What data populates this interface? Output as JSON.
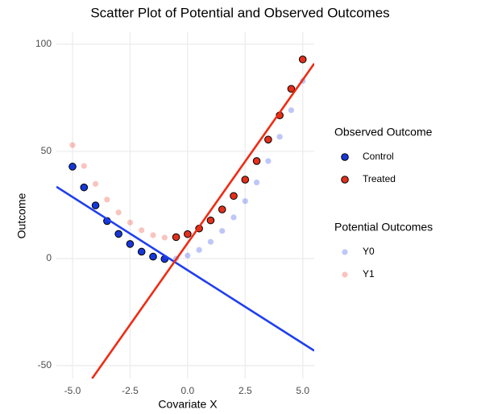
{
  "chart_data": {
    "type": "scatter",
    "title": "Scatter Plot of Potential and Observed Outcomes",
    "x_label": "Covariate X",
    "y_label": "Outcome",
    "xlim": [
      -5.7,
      5.5
    ],
    "ylim": [
      -56,
      105.6
    ],
    "xticks": [
      {
        "value": -5,
        "label": "-5.0"
      },
      -2.5,
      {
        "value": 0,
        "label": "0.0"
      },
      2.5,
      {
        "value": 5,
        "label": "5.0"
      }
    ],
    "yticks": [
      -50,
      0,
      50,
      100
    ],
    "grid": true,
    "legend_groups": [
      {
        "title": "Observed Outcome"
      },
      {
        "title": "Potential Outcomes"
      }
    ],
    "series": [
      {
        "name": "Y0",
        "color": "#2746e8",
        "group": 1,
        "opacity": 0.3,
        "x": [
          -5,
          -4.5,
          -4,
          -3.5,
          -3,
          -2.5,
          -2,
          -1.5,
          -1,
          -0.5,
          0,
          0.5,
          1,
          1.5,
          2,
          2.5,
          3,
          3.5,
          4,
          4.5,
          5
        ],
        "values": [
          42.9,
          33.2,
          24.8,
          17.5,
          11.5,
          6.8,
          3.2,
          0.9,
          -0.2,
          0.0,
          1.4,
          4.0,
          7.8,
          12.9,
          19.2,
          26.8,
          35.5,
          45.5,
          56.8,
          69.2,
          82.9
        ]
      },
      {
        "name": "Y1",
        "color": "#ea3a2a",
        "group": 1,
        "opacity": 0.3,
        "x": [
          -5,
          -4.5,
          -4,
          -3.5,
          -3,
          -2.5,
          -2,
          -1.5,
          -1,
          -0.5,
          0,
          0.5,
          1,
          1.5,
          2,
          2.5,
          3,
          3.5,
          4,
          4.5,
          5
        ],
        "values": [
          52.9,
          43.2,
          34.8,
          27.5,
          21.5,
          16.8,
          13.2,
          10.9,
          9.8,
          10.0,
          11.4,
          14.0,
          17.8,
          22.9,
          29.2,
          36.8,
          45.5,
          55.5,
          66.8,
          79.2,
          92.9
        ]
      },
      {
        "name": "Control",
        "color": "#1738d8",
        "group": 0,
        "opacity": 1,
        "x": [
          -5,
          -4.5,
          -4,
          -3.5,
          -3,
          -2.5,
          -2,
          -1.5,
          -1
        ],
        "values": [
          42.9,
          33.2,
          24.8,
          17.5,
          11.5,
          6.8,
          3.2,
          0.9,
          -0.2
        ]
      },
      {
        "name": "Treated",
        "color": "#e2301c",
        "group": 0,
        "opacity": 1,
        "x": [
          -0.5,
          0,
          0.5,
          1,
          1.5,
          2,
          2.5,
          3,
          3.5,
          4,
          4.5,
          5
        ],
        "values": [
          10.0,
          11.4,
          14.0,
          17.8,
          22.9,
          29.2,
          36.8,
          45.5,
          55.5,
          66.8,
          79.2,
          92.9
        ]
      }
    ],
    "lines": [
      {
        "color": "#1f3ff0",
        "x": [
          -5.7,
          5.5
        ],
        "values": [
          33.5,
          -43
        ]
      },
      {
        "color": "#ee2c14",
        "x": [
          -4.15,
          5.5
        ],
        "values": [
          -56,
          91
        ]
      }
    ]
  }
}
